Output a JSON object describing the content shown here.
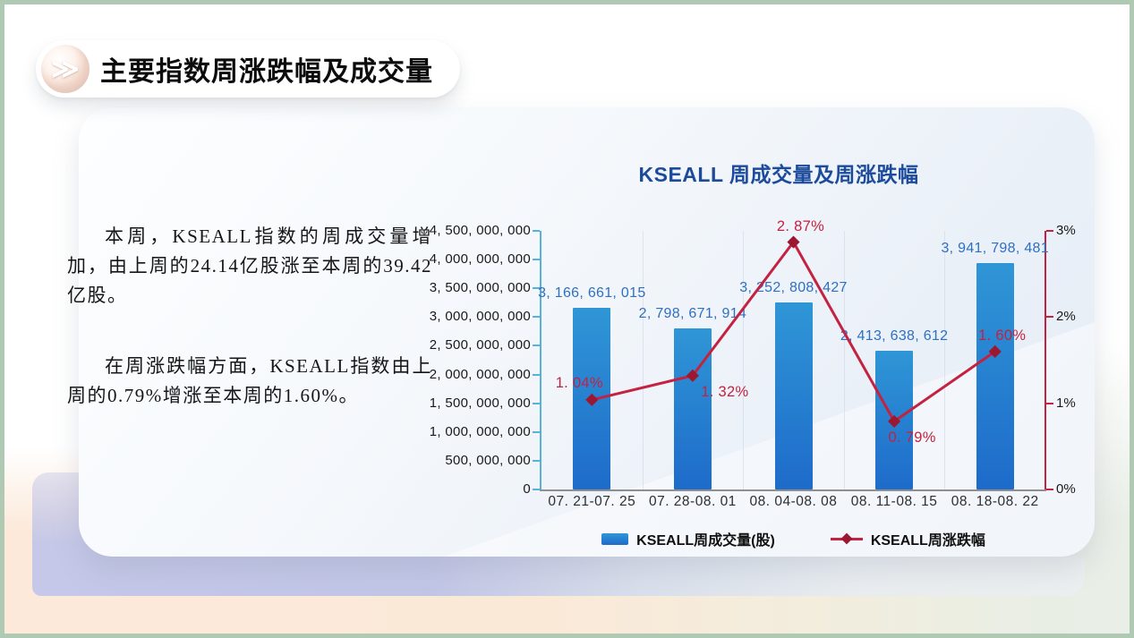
{
  "slide": {
    "header": {
      "title": "主要指数周涨跌幅及成交量",
      "icon": "double-chevron-right-icon",
      "icon_glyph": "≫"
    },
    "body": {
      "paragraphs": [
        "本周，KSEALL指数的周成交量增加，由上周的24.14亿股涨至本周的39.42亿股。",
        "在周涨跌幅方面，KSEALL指数由上周的0.79%增涨至本周的1.60%。"
      ]
    }
  },
  "chart_data": {
    "type": "bar+line",
    "title": "KSEALL 周成交量及周涨跌幅",
    "categories": [
      "07. 21-07. 25",
      "07. 28-08. 01",
      "08. 04-08. 08",
      "08. 11-08. 15",
      "08. 18-08. 22"
    ],
    "series": [
      {
        "name": "KSEALL周成交量(股)",
        "type": "bar",
        "axis": "left",
        "values": [
          3166661015,
          2798671914,
          3252808427,
          2413638612,
          3941798481
        ],
        "data_labels": [
          "3, 166, 661, 015",
          "2, 798, 671, 914",
          "3, 252, 808, 427",
          "2, 413, 638, 612",
          "3, 941, 798, 481"
        ]
      },
      {
        "name": "KSEALL周涨跌幅",
        "type": "line",
        "axis": "right",
        "values": [
          1.04,
          1.32,
          2.87,
          0.79,
          1.6
        ],
        "data_labels": [
          "1. 04%",
          "1. 32%",
          "2. 87%",
          "0. 79%",
          "1. 60%"
        ],
        "label_positions": [
          "above-left",
          "below-right",
          "above",
          "below",
          "above"
        ]
      }
    ],
    "left_axis": {
      "min": 0,
      "max": 4500000000,
      "step": 500000000,
      "tick_labels_bottom_to_top": [
        "0",
        "500, 000, 000",
        "1, 000, 000, 000",
        "1, 500, 000, 000",
        "2, 000, 000, 000",
        "2, 500, 000, 000",
        "3, 000, 000, 000",
        "3, 500, 000, 000",
        "4, 000, 000, 000",
        "4, 500, 000, 000"
      ]
    },
    "right_axis": {
      "min": 0,
      "max": 3,
      "step": 1,
      "unit": "%",
      "tick_labels_bottom_to_top": [
        "0%",
        "1%",
        "2%",
        "3%"
      ]
    },
    "grid": {
      "horizontal": false,
      "vertical_category_boundaries": true
    },
    "legend": {
      "position": "bottom",
      "items": [
        "KSEALL周成交量(股)",
        "KSEALL周涨跌幅"
      ]
    },
    "colors": {
      "bar_top": "#2f96d6",
      "bar_bottom": "#1e6bca",
      "bar_label": "#2e6fc2",
      "line": "#c32240",
      "marker": "#9c1830",
      "left_axis": "#57b2da",
      "right_axis": "#c32240",
      "x_axis": "#8f8f8f",
      "grid_line": "#ccd5e3",
      "title": "#1d4b9c"
    }
  },
  "theme": {
    "frame_border": "#b0c9b2",
    "band_lavender": "#c5c8e8",
    "band_peach": "#fce9da",
    "wash_green": "#e9eee7",
    "panel_gradient_start": "#fdfeff",
    "panel_gradient_end": "#e7edf6"
  }
}
